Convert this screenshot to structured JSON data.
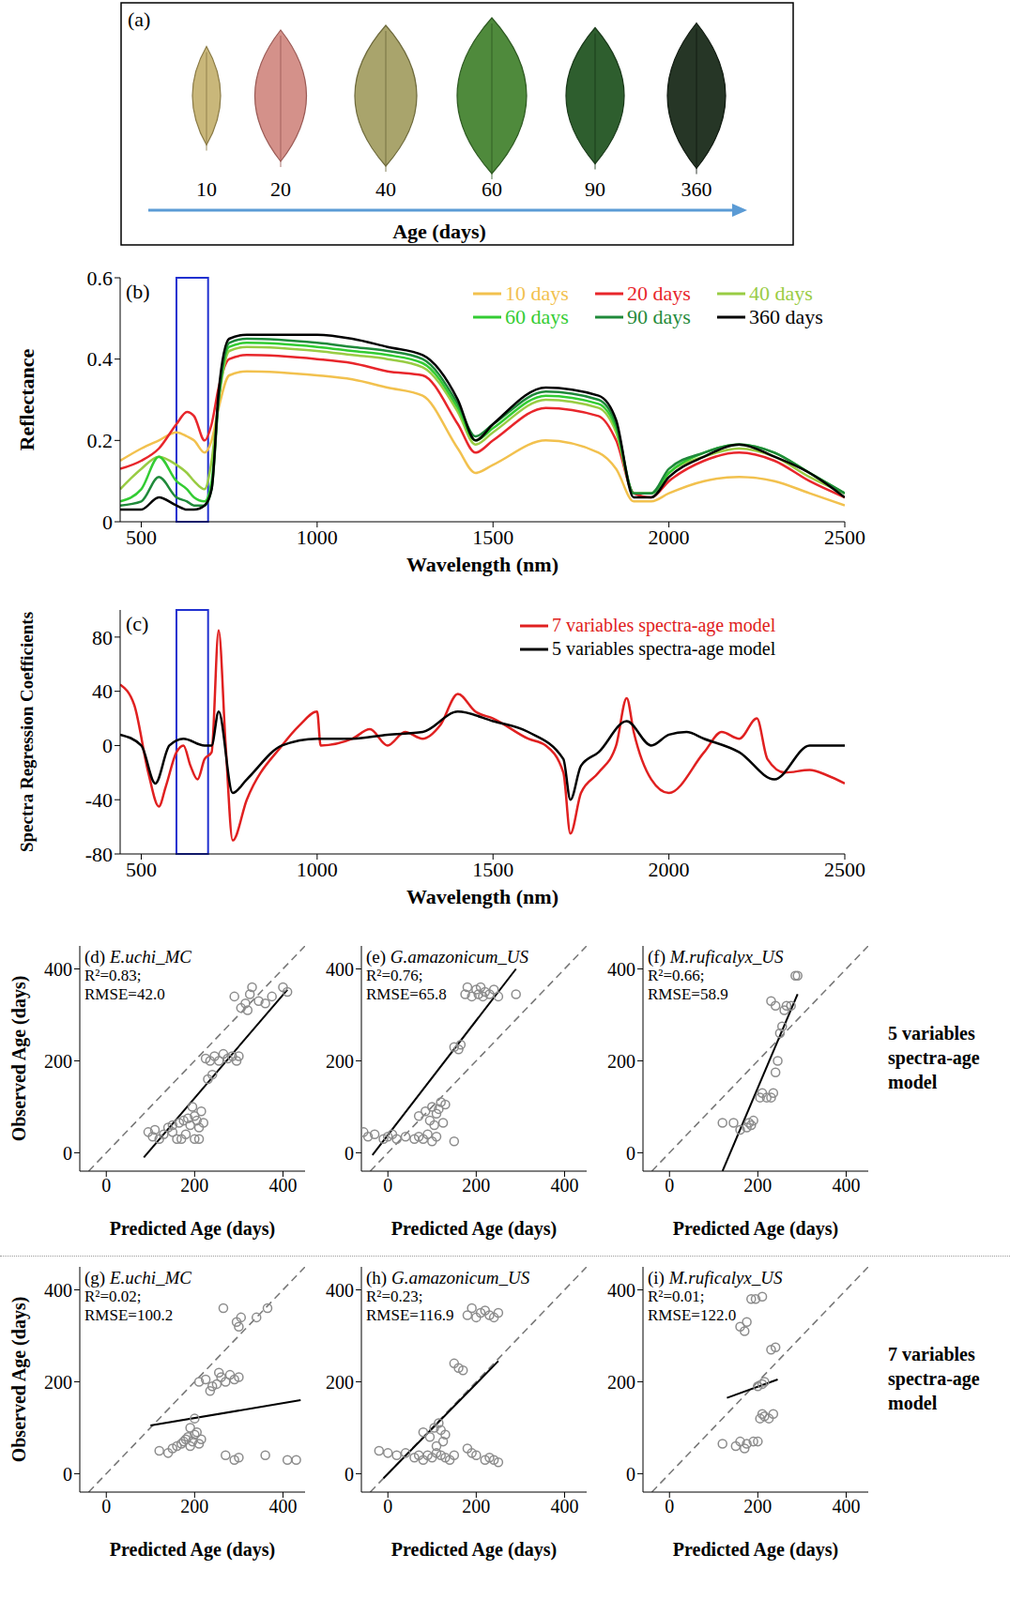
{
  "panel_a": {
    "label": "(a)",
    "ages": [
      10,
      20,
      40,
      60,
      90,
      360
    ],
    "axis_label": "Age (days)"
  },
  "row_labels": [
    "5 variables spectra-age model",
    "7 variables spectra-age model"
  ],
  "chart_data": [
    {
      "label": "(b)",
      "type": "line",
      "x_label": "Wavelength (nm)",
      "y_label": "Reflectance",
      "x": [
        440,
        500,
        550,
        600,
        630,
        650,
        680,
        700,
        720,
        750,
        800,
        1000,
        1100,
        1200,
        1300,
        1400,
        1450,
        1500,
        1650,
        1800,
        1850,
        1900,
        1950,
        2000,
        2100,
        2200,
        2300,
        2400,
        2500
      ],
      "series": [
        {
          "name": "10 days",
          "color": "#f2c14e",
          "values": [
            0.15,
            0.18,
            0.2,
            0.22,
            0.21,
            0.2,
            0.17,
            0.2,
            0.28,
            0.36,
            0.37,
            0.36,
            0.35,
            0.33,
            0.31,
            0.18,
            0.12,
            0.14,
            0.2,
            0.17,
            0.13,
            0.05,
            0.05,
            0.07,
            0.1,
            0.11,
            0.1,
            0.07,
            0.04
          ]
        },
        {
          "name": "20 days",
          "color": "#e8262b",
          "values": [
            0.13,
            0.15,
            0.18,
            0.24,
            0.27,
            0.26,
            0.2,
            0.24,
            0.33,
            0.4,
            0.41,
            0.4,
            0.39,
            0.37,
            0.36,
            0.24,
            0.17,
            0.2,
            0.28,
            0.26,
            0.2,
            0.07,
            0.06,
            0.1,
            0.15,
            0.17,
            0.15,
            0.1,
            0.06
          ]
        },
        {
          "name": "40 days",
          "color": "#99cc44",
          "values": [
            0.08,
            0.13,
            0.16,
            0.14,
            0.12,
            0.1,
            0.08,
            0.15,
            0.3,
            0.42,
            0.43,
            0.42,
            0.41,
            0.4,
            0.38,
            0.27,
            0.19,
            0.22,
            0.3,
            0.28,
            0.22,
            0.07,
            0.07,
            0.12,
            0.16,
            0.18,
            0.16,
            0.11,
            0.07
          ]
        },
        {
          "name": "60 days",
          "color": "#33cc33",
          "values": [
            0.05,
            0.08,
            0.16,
            0.1,
            0.08,
            0.06,
            0.05,
            0.1,
            0.3,
            0.43,
            0.44,
            0.43,
            0.42,
            0.41,
            0.39,
            0.28,
            0.2,
            0.23,
            0.31,
            0.29,
            0.23,
            0.07,
            0.07,
            0.12,
            0.17,
            0.19,
            0.17,
            0.12,
            0.07
          ]
        },
        {
          "name": "90 days",
          "color": "#1f8a3a",
          "values": [
            0.04,
            0.05,
            0.11,
            0.06,
            0.05,
            0.04,
            0.04,
            0.08,
            0.3,
            0.44,
            0.45,
            0.44,
            0.43,
            0.42,
            0.4,
            0.29,
            0.21,
            0.24,
            0.32,
            0.3,
            0.24,
            0.07,
            0.07,
            0.13,
            0.17,
            0.19,
            0.17,
            0.12,
            0.07
          ]
        },
        {
          "name": "360 days",
          "color": "#000000",
          "values": [
            0.03,
            0.03,
            0.06,
            0.04,
            0.03,
            0.03,
            0.04,
            0.08,
            0.32,
            0.45,
            0.46,
            0.46,
            0.45,
            0.43,
            0.41,
            0.3,
            0.2,
            0.24,
            0.33,
            0.31,
            0.25,
            0.06,
            0.06,
            0.11,
            0.16,
            0.19,
            0.16,
            0.12,
            0.06
          ]
        }
      ],
      "xlim": [
        440,
        2500
      ],
      "xticks": [
        500,
        1000,
        1500,
        2000,
        2500
      ],
      "ylim": [
        0,
        0.6
      ],
      "yticks": [
        0,
        0.2,
        0.4,
        0.6
      ],
      "legend": "upper right",
      "highlight": [
        600,
        690
      ]
    },
    {
      "label": "(c)",
      "type": "line",
      "x_label": "Wavelength (nm)",
      "y_label": "Spectra Regression Coefficients",
      "series": [
        {
          "name": "7 variables spectra-age model",
          "color": "#e02020",
          "x": [
            440,
            480,
            520,
            550,
            570,
            600,
            620,
            640,
            660,
            680,
            700,
            720,
            740,
            760,
            800,
            900,
            950,
            1000,
            1010,
            1100,
            1150,
            1200,
            1250,
            1300,
            1350,
            1400,
            1450,
            1500,
            1600,
            1650,
            1700,
            1720,
            1750,
            1800,
            1850,
            1880,
            1900,
            1950,
            2000,
            2100,
            2150,
            2200,
            2250,
            2280,
            2330,
            2400,
            2450,
            2500
          ],
          "values": [
            45,
            30,
            -20,
            -45,
            -30,
            -5,
            0,
            -15,
            -25,
            -10,
            -5,
            85,
            0,
            -70,
            -40,
            0,
            15,
            25,
            0,
            5,
            12,
            0,
            10,
            5,
            15,
            38,
            25,
            20,
            5,
            0,
            -20,
            -65,
            -35,
            -20,
            0,
            35,
            10,
            -25,
            -35,
            -5,
            10,
            5,
            20,
            -10,
            -20,
            -18,
            -22,
            -28
          ]
        },
        {
          "name": "5 variables spectra-age model",
          "color": "#000000",
          "x": [
            440,
            500,
            540,
            580,
            620,
            680,
            700,
            720,
            760,
            800,
            900,
            1000,
            1100,
            1200,
            1300,
            1400,
            1500,
            1600,
            1700,
            1720,
            1750,
            1800,
            1880,
            1950,
            2000,
            2050,
            2100,
            2200,
            2300,
            2400,
            2500
          ],
          "values": [
            8,
            0,
            -28,
            0,
            5,
            0,
            0,
            25,
            -35,
            -25,
            0,
            5,
            5,
            8,
            10,
            25,
            18,
            10,
            -10,
            -40,
            -15,
            -5,
            18,
            0,
            8,
            10,
            5,
            -5,
            -25,
            0,
            0
          ]
        }
      ],
      "xlim": [
        440,
        2500
      ],
      "xticks": [
        500,
        1000,
        1500,
        2000,
        2500
      ],
      "ylim": [
        -80,
        100
      ],
      "yticks": [
        -80,
        -40,
        0,
        40,
        80
      ],
      "legend": "upper right",
      "highlight": [
        600,
        690
      ]
    },
    {
      "title": "(d) E.uchi_MC",
      "type": "scatter",
      "x_label": "Predicted Age (days)",
      "y_label": "Observed Age (days)",
      "color": "#8c8c8c",
      "marker": "open circle",
      "x": [
        95,
        105,
        110,
        120,
        130,
        140,
        150,
        160,
        170,
        180,
        200,
        210,
        150,
        165,
        175,
        185,
        190,
        200,
        205,
        215,
        220,
        195,
        210,
        225,
        235,
        245,
        255,
        265,
        275,
        285,
        295,
        300,
        240,
        230,
        290,
        305,
        315,
        325,
        330,
        345,
        360,
        375,
        400,
        410,
        320
      ],
      "values": [
        45,
        35,
        50,
        30,
        40,
        55,
        45,
        30,
        30,
        40,
        30,
        30,
        60,
        65,
        70,
        75,
        60,
        80,
        70,
        90,
        65,
        100,
        55,
        205,
        200,
        210,
        200,
        215,
        205,
        210,
        200,
        210,
        170,
        160,
        340,
        315,
        325,
        345,
        360,
        330,
        325,
        340,
        360,
        350,
        310
      ],
      "fit": {
        "x": [
          85,
          410
        ],
        "y": [
          -10,
          355
        ]
      },
      "annotations": [
        "R²=0.83;",
        "RMSE=42.0"
      ],
      "xlim": [
        -60,
        450
      ],
      "xticks": [
        0,
        200,
        400
      ],
      "ylim": [
        -40,
        450
      ],
      "yticks": [
        0,
        200,
        400
      ]
    },
    {
      "title": "(e) G.amazonicum_US",
      "type": "scatter",
      "x_label": "Predicted Age (days)",
      "color": "#8c8c8c",
      "marker": "open circle",
      "x": [
        -55,
        -45,
        -30,
        -10,
        0,
        10,
        20,
        40,
        60,
        70,
        80,
        90,
        100,
        110,
        150,
        70,
        85,
        95,
        100,
        110,
        115,
        120,
        130,
        125,
        105,
        150,
        160,
        165,
        175,
        180,
        190,
        200,
        205,
        210,
        215,
        220,
        230,
        240,
        250,
        290
      ],
      "values": [
        45,
        35,
        40,
        30,
        35,
        40,
        30,
        35,
        30,
        35,
        30,
        40,
        25,
        35,
        25,
        80,
        90,
        70,
        100,
        85,
        95,
        110,
        105,
        65,
        60,
        230,
        225,
        235,
        345,
        360,
        340,
        355,
        345,
        360,
        340,
        350,
        345,
        355,
        340,
        345
      ],
      "fit": {
        "x": [
          -35,
          290
        ],
        "y": [
          -5,
          400
        ]
      },
      "annotations": [
        "R²=0.76;",
        "RMSE=65.8"
      ],
      "xlim": [
        -60,
        450
      ],
      "xticks": [
        0,
        200,
        400
      ],
      "ylim": [
        -40,
        450
      ],
      "yticks": [
        0,
        200,
        400
      ]
    },
    {
      "title": "(f) M.ruficalyx_US",
      "type": "scatter",
      "x_label": "Predicted Age (days)",
      "color": "#8c8c8c",
      "marker": "open circle",
      "x": [
        120,
        145,
        160,
        175,
        180,
        185,
        190,
        205,
        210,
        220,
        230,
        235,
        240,
        245,
        250,
        255,
        260,
        265,
        275,
        230,
        240,
        285,
        290
      ],
      "values": [
        65,
        65,
        50,
        55,
        65,
        60,
        70,
        120,
        130,
        120,
        120,
        130,
        175,
        200,
        260,
        275,
        310,
        320,
        320,
        330,
        320,
        385,
        385
      ],
      "fit": {
        "x": [
          120,
          290
        ],
        "y": [
          -40,
          345
        ]
      },
      "annotations": [
        "R²=0.66;",
        "RMSE=58.9"
      ],
      "xlim": [
        -60,
        450
      ],
      "xticks": [
        0,
        200,
        400
      ],
      "ylim": [
        -40,
        450
      ],
      "yticks": [
        0,
        200,
        400
      ]
    },
    {
      "title": "(g) E.uchi_MC",
      "type": "scatter",
      "x_label": "Predicted Age (days)",
      "y_label": "Observed Age (days)",
      "color": "#8c8c8c",
      "marker": "open circle",
      "x": [
        120,
        140,
        150,
        160,
        170,
        175,
        180,
        185,
        190,
        195,
        200,
        205,
        210,
        215,
        190,
        200,
        210,
        225,
        240,
        250,
        260,
        270,
        280,
        290,
        300,
        235,
        255,
        265,
        295,
        300,
        305,
        340,
        365,
        270,
        290,
        300,
        360,
        410,
        430
      ],
      "values": [
        50,
        45,
        55,
        60,
        65,
        70,
        75,
        80,
        60,
        70,
        85,
        90,
        65,
        75,
        100,
        120,
        200,
        205,
        190,
        195,
        210,
        200,
        215,
        205,
        210,
        180,
        220,
        360,
        330,
        320,
        340,
        340,
        360,
        40,
        30,
        35,
        40,
        30,
        30
      ],
      "fit": {
        "x": [
          100,
          440
        ],
        "y": [
          105,
          160
        ]
      },
      "annotations": [
        "R²=0.02;",
        "RMSE=100.2"
      ],
      "xlim": [
        -60,
        450
      ],
      "xticks": [
        0,
        200,
        400
      ],
      "ylim": [
        -40,
        450
      ],
      "yticks": [
        0,
        200,
        400
      ]
    },
    {
      "title": "(h) G.amazonicum_US",
      "type": "scatter",
      "x_label": "Predicted Age (days)",
      "color": "#8c8c8c",
      "marker": "open circle",
      "x": [
        -20,
        0,
        20,
        40,
        60,
        70,
        80,
        90,
        100,
        110,
        120,
        130,
        140,
        150,
        80,
        95,
        105,
        115,
        120,
        130,
        125,
        110,
        150,
        160,
        170,
        180,
        190,
        200,
        210,
        220,
        230,
        240,
        250,
        200,
        220,
        230,
        240,
        250,
        180,
        190
      ],
      "values": [
        50,
        45,
        40,
        45,
        35,
        40,
        30,
        40,
        35,
        45,
        40,
        35,
        30,
        40,
        90,
        80,
        100,
        110,
        95,
        85,
        70,
        60,
        240,
        230,
        225,
        345,
        360,
        340,
        350,
        355,
        345,
        340,
        350,
        40,
        30,
        35,
        30,
        25,
        55,
        45
      ],
      "fit": {
        "x": [
          -10,
          250
        ],
        "y": [
          -10,
          245
        ]
      },
      "annotations": [
        "R²=0.23;",
        "RMSE=116.9"
      ],
      "xlim": [
        -60,
        450
      ],
      "xticks": [
        0,
        200,
        400
      ],
      "ylim": [
        -40,
        450
      ],
      "yticks": [
        0,
        200,
        400
      ]
    },
    {
      "title": "(i) M.ruficalyx_US",
      "type": "scatter",
      "x_label": "Predicted Age (days)",
      "color": "#8c8c8c",
      "marker": "open circle",
      "x": [
        120,
        150,
        160,
        170,
        175,
        190,
        200,
        205,
        210,
        215,
        225,
        235,
        200,
        210,
        215,
        160,
        170,
        175,
        185,
        195,
        210,
        240,
        230
      ],
      "values": [
        65,
        60,
        70,
        55,
        65,
        70,
        70,
        120,
        130,
        125,
        120,
        130,
        190,
        195,
        200,
        320,
        310,
        330,
        380,
        380,
        385,
        275,
        270
      ],
      "fit": {
        "x": [
          130,
          245
        ],
        "y": [
          165,
          205
        ]
      },
      "annotations": [
        "R²=0.01;",
        "RMSE=122.0"
      ],
      "xlim": [
        -60,
        450
      ],
      "xticks": [
        0,
        200,
        400
      ],
      "ylim": [
        -40,
        450
      ],
      "yticks": [
        0,
        200,
        400
      ]
    }
  ]
}
